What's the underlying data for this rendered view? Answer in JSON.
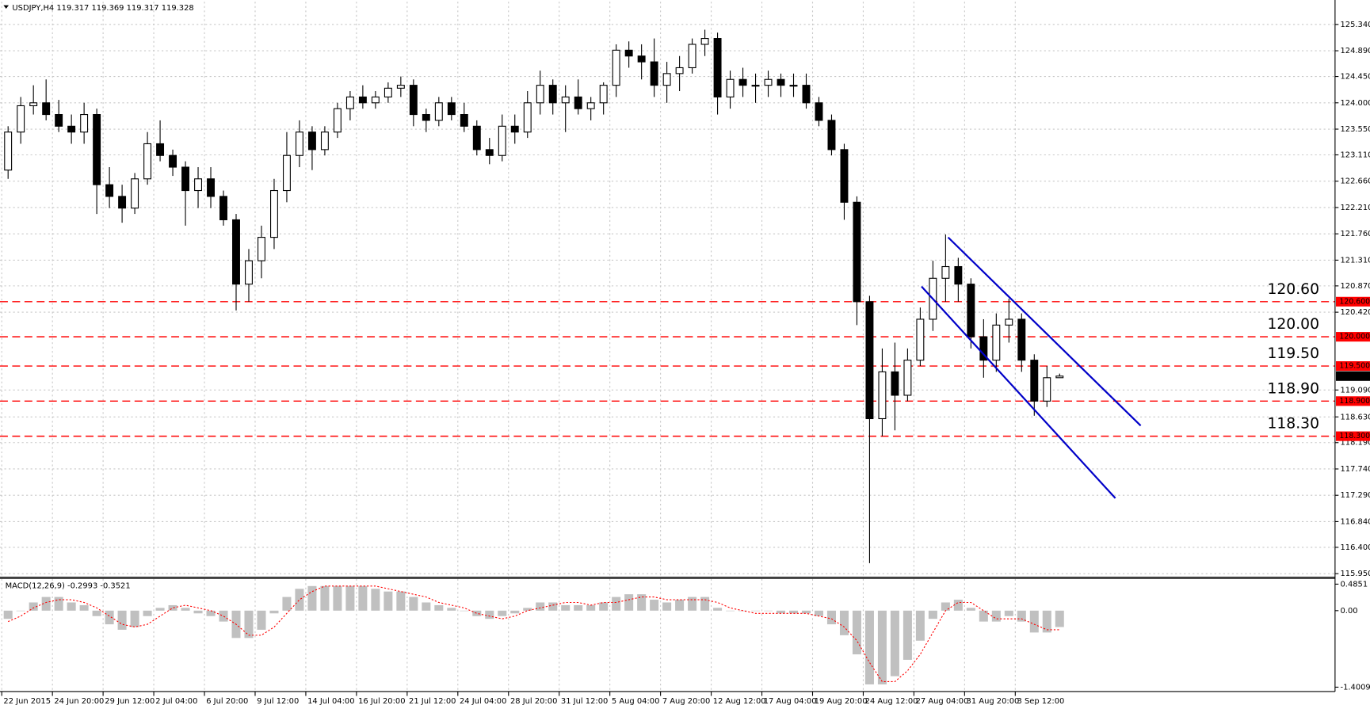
{
  "chart_data": [
    {
      "type": "candlestick",
      "title": "USDJPY,H4  119.317 119.369 119.317 119.328",
      "x": [
        "22 Jun 2015",
        null,
        null,
        null,
        "24 Jun 20:00",
        null,
        null,
        null,
        "29 Jun 12:00",
        null,
        null,
        null,
        "2 Jul 04:00",
        null,
        null,
        null,
        "6 Jul 20:00",
        null,
        null,
        null,
        "9 Jul 12:00",
        null,
        null,
        null,
        "14 Jul 04:00",
        null,
        null,
        null,
        "16 Jul 20:00",
        null,
        null,
        null,
        "21 Jul 12:00",
        null,
        null,
        null,
        "24 Jul 04:00",
        null,
        null,
        null,
        "28 Jul 20:00",
        null,
        null,
        null,
        "31 Jul 12:00",
        null,
        null,
        null,
        "5 Aug 04:00",
        null,
        null,
        null,
        "7 Aug 20:00",
        null,
        null,
        null,
        "12 Aug 12:00",
        null,
        null,
        null,
        "17 Aug 04:00",
        null,
        null,
        null,
        "19 Aug 20:00",
        null,
        null,
        null,
        "24 Aug 12:00",
        null,
        null,
        null,
        "27 Aug 04:00",
        null,
        null,
        null,
        "31 Aug 20:00",
        null,
        null,
        null,
        "3 Sep 12:00",
        null,
        null,
        null
      ],
      "open": [
        122.85,
        123.5,
        123.95,
        124.0,
        123.8,
        123.6,
        123.5,
        123.8,
        122.6,
        122.4,
        122.2,
        122.7,
        123.3,
        123.1,
        122.9,
        122.5,
        122.7,
        122.4,
        122.0,
        120.9,
        121.3,
        121.7,
        122.5,
        123.1,
        123.5,
        123.2,
        123.5,
        123.9,
        124.1,
        124.0,
        124.1,
        124.25,
        124.3,
        123.8,
        123.7,
        124.0,
        123.8,
        123.6,
        123.2,
        123.1,
        123.6,
        123.5,
        124.0,
        124.3,
        124.0,
        124.1,
        123.9,
        124.0,
        124.3,
        124.9,
        124.8,
        124.7,
        124.3,
        124.5,
        124.6,
        125.0,
        125.1,
        124.1,
        124.4,
        124.3,
        124.3,
        124.4,
        124.3,
        124.3,
        124.0,
        123.7,
        123.2,
        122.3,
        120.6,
        118.6,
        119.4,
        119.0,
        119.6,
        120.3,
        121.0,
        121.2,
        120.9,
        120.0,
        119.6,
        120.2,
        120.3,
        119.6,
        118.9,
        119.3
      ],
      "high": [
        123.6,
        124.1,
        124.3,
        124.4,
        124.05,
        123.8,
        124.0,
        123.9,
        122.9,
        122.6,
        122.8,
        123.5,
        123.7,
        123.2,
        123.0,
        122.9,
        122.9,
        122.5,
        122.1,
        121.5,
        121.9,
        122.7,
        123.5,
        123.7,
        123.6,
        123.6,
        124.0,
        124.2,
        124.3,
        124.2,
        124.35,
        124.45,
        124.4,
        123.9,
        124.1,
        124.1,
        124.0,
        123.7,
        123.4,
        123.8,
        123.8,
        124.2,
        124.55,
        124.4,
        124.3,
        124.4,
        124.1,
        124.35,
        125.0,
        125.05,
        125.0,
        125.1,
        124.7,
        124.8,
        125.1,
        125.25,
        125.2,
        124.55,
        124.6,
        124.5,
        124.55,
        124.5,
        124.5,
        124.5,
        124.1,
        123.8,
        123.3,
        122.4,
        120.7,
        119.8,
        119.9,
        119.8,
        120.5,
        121.3,
        121.75,
        121.35,
        121.0,
        120.3,
        120.4,
        120.65,
        120.4,
        119.7,
        119.5,
        119.37
      ],
      "low": [
        122.7,
        123.3,
        123.8,
        123.7,
        123.5,
        123.3,
        123.3,
        122.1,
        122.2,
        121.95,
        122.1,
        122.6,
        123.0,
        122.75,
        121.9,
        122.2,
        122.2,
        121.9,
        120.45,
        120.6,
        121.0,
        121.5,
        122.3,
        122.9,
        122.85,
        123.1,
        123.4,
        123.7,
        123.9,
        123.9,
        124.0,
        124.1,
        123.6,
        123.5,
        123.6,
        123.7,
        123.5,
        123.1,
        122.95,
        123.0,
        123.3,
        123.4,
        123.8,
        123.8,
        123.5,
        123.8,
        123.7,
        123.8,
        124.1,
        124.6,
        124.4,
        124.1,
        124.0,
        124.2,
        124.5,
        124.8,
        123.8,
        123.9,
        124.1,
        124.0,
        124.1,
        124.1,
        124.1,
        123.9,
        123.6,
        123.1,
        122.0,
        120.2,
        116.13,
        118.3,
        118.4,
        118.9,
        119.5,
        120.1,
        120.6,
        120.6,
        119.8,
        119.3,
        119.4,
        119.9,
        119.4,
        118.65,
        118.8,
        119.3
      ],
      "close": [
        123.5,
        123.95,
        124.0,
        123.8,
        123.6,
        123.5,
        123.8,
        122.6,
        122.4,
        122.2,
        122.7,
        123.3,
        123.1,
        122.9,
        122.5,
        122.7,
        122.4,
        122.0,
        120.9,
        121.3,
        121.7,
        122.5,
        123.1,
        123.5,
        123.2,
        123.5,
        123.9,
        124.1,
        124.0,
        124.1,
        124.25,
        124.3,
        123.8,
        123.7,
        124.0,
        123.8,
        123.6,
        123.2,
        123.1,
        123.6,
        123.5,
        124.0,
        124.3,
        124.0,
        124.1,
        123.9,
        124.0,
        124.3,
        124.9,
        124.8,
        124.7,
        124.3,
        124.5,
        124.6,
        125.0,
        125.1,
        124.1,
        124.4,
        124.3,
        124.3,
        124.4,
        124.3,
        124.3,
        124.0,
        123.7,
        123.2,
        122.3,
        120.6,
        118.6,
        119.4,
        119.0,
        119.6,
        120.3,
        121.0,
        121.2,
        120.9,
        120.0,
        119.6,
        120.2,
        120.3,
        119.6,
        118.9,
        119.3,
        119.328
      ],
      "up_color": "#ffffff",
      "down_color": "#000000",
      "edge_color": "#000000",
      "ylim": [
        115.905,
        125.728
      ],
      "yticks": [
        {
          "value": 125.34,
          "label": "125.340"
        },
        {
          "value": 124.89,
          "label": "124.890"
        },
        {
          "value": 124.45,
          "label": "124.450"
        },
        {
          "value": 124.0,
          "label": "124.000"
        },
        {
          "value": 123.55,
          "label": "123.550"
        },
        {
          "value": 123.11,
          "label": "123.110"
        },
        {
          "value": 122.66,
          "label": "122.660"
        },
        {
          "value": 122.21,
          "label": "122.210"
        },
        {
          "value": 121.76,
          "label": "121.760"
        },
        {
          "value": 121.31,
          "label": "121.310"
        },
        {
          "value": 120.87,
          "label": "120.870"
        },
        {
          "value": 120.42,
          "label": "120.420"
        },
        {
          "value": 119.09,
          "label": "119.090"
        },
        {
          "value": 118.63,
          "label": "118.630"
        },
        {
          "value": 118.19,
          "label": "118.190"
        },
        {
          "value": 117.74,
          "label": "117.740"
        },
        {
          "value": 117.29,
          "label": "117.290"
        },
        {
          "value": 116.84,
          "label": "116.840"
        },
        {
          "value": 116.4,
          "label": "116.400"
        },
        {
          "value": 115.95,
          "label": "115.950"
        }
      ],
      "grid": true,
      "levels": [
        {
          "value": 120.6,
          "label": "120.60",
          "axis_label": "120.600"
        },
        {
          "value": 120.0,
          "label": "120.00",
          "axis_label": "120.000"
        },
        {
          "value": 119.5,
          "label": "119.50",
          "axis_label": "119.500"
        },
        {
          "value": 118.9,
          "label": "118.90",
          "axis_label": "118.900"
        },
        {
          "value": 118.3,
          "label": "118.30",
          "axis_label": "118.300"
        }
      ],
      "level_color": "#ff0000",
      "level_text_color": "#ff3c00",
      "trendlines": [
        {
          "x": [
            74.2,
            89.4
          ],
          "y": [
            121.7,
            118.48
          ]
        },
        {
          "x": [
            72.1,
            87.4
          ],
          "y": [
            120.86,
            117.24
          ]
        }
      ],
      "trendline_color": "#0000c8",
      "current": {
        "value": 119.328,
        "label": "119.328"
      }
    },
    {
      "type": "macd",
      "title": "MACD(12,26,9) -0.2993 -0.3521",
      "histogram": [
        -0.15,
        0.0,
        0.15,
        0.25,
        0.25,
        0.15,
        0.1,
        -0.1,
        -0.25,
        -0.35,
        -0.3,
        -0.1,
        0.05,
        0.1,
        0.05,
        -0.05,
        -0.1,
        -0.2,
        -0.5,
        -0.5,
        -0.35,
        -0.05,
        0.25,
        0.4,
        0.45,
        0.45,
        0.45,
        0.45,
        0.45,
        0.4,
        0.35,
        0.35,
        0.25,
        0.15,
        0.1,
        0.05,
        0.0,
        -0.1,
        -0.15,
        -0.1,
        -0.05,
        0.05,
        0.15,
        0.15,
        0.1,
        0.1,
        0.1,
        0.15,
        0.25,
        0.3,
        0.3,
        0.2,
        0.15,
        0.2,
        0.25,
        0.25,
        0.05,
        0.0,
        0.0,
        0.0,
        0.0,
        -0.05,
        -0.05,
        -0.05,
        -0.1,
        -0.25,
        -0.45,
        -0.8,
        -1.35,
        -1.35,
        -1.2,
        -0.9,
        -0.55,
        -0.15,
        0.15,
        0.2,
        0.05,
        -0.2,
        -0.2,
        -0.1,
        -0.2,
        -0.4,
        -0.4,
        -0.3
      ],
      "signal": [
        -0.2,
        -0.1,
        0.05,
        0.15,
        0.2,
        0.2,
        0.15,
        0.05,
        -0.1,
        -0.25,
        -0.3,
        -0.25,
        -0.1,
        0.05,
        0.1,
        0.05,
        0.0,
        -0.1,
        -0.25,
        -0.45,
        -0.45,
        -0.3,
        -0.05,
        0.2,
        0.35,
        0.45,
        0.45,
        0.45,
        0.45,
        0.45,
        0.4,
        0.35,
        0.3,
        0.25,
        0.15,
        0.1,
        0.05,
        -0.05,
        -0.1,
        -0.15,
        -0.1,
        0.0,
        0.05,
        0.1,
        0.15,
        0.15,
        0.1,
        0.15,
        0.15,
        0.2,
        0.25,
        0.25,
        0.2,
        0.2,
        0.2,
        0.2,
        0.15,
        0.05,
        0.0,
        -0.05,
        -0.05,
        -0.05,
        -0.05,
        -0.05,
        -0.1,
        -0.15,
        -0.3,
        -0.55,
        -0.95,
        -1.3,
        -1.3,
        -1.1,
        -0.8,
        -0.4,
        0.0,
        0.15,
        0.15,
        0.0,
        -0.15,
        -0.15,
        -0.15,
        -0.25,
        -0.35,
        -0.35
      ],
      "histogram_color": "#c0c0c0",
      "signal_color": "#ff0000",
      "ylim": [
        -1.449,
        0.581
      ],
      "yticks": [
        0.4851,
        {
          "value": 0,
          "label": "0.00"
        },
        -1.4009
      ]
    }
  ]
}
